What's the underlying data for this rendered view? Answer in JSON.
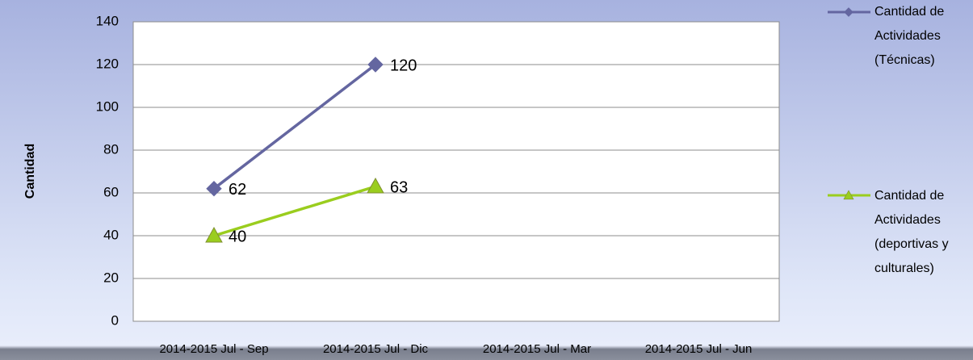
{
  "chart_data": {
    "type": "line",
    "y_label": "Cantidad",
    "categories": [
      "2014-2015 Jul - Sep",
      "2014-2015 Jul - Dic",
      "2014-2015 Jul - Mar",
      "2014-2015 Jul - Jun"
    ],
    "series": [
      {
        "name": "Cantidad de Actividades (Técnicas)",
        "color": "#6466a0",
        "marker": "diamond",
        "values": [
          62,
          120,
          null,
          null
        ]
      },
      {
        "name": "Cantidad de Actividades (deportivas y culturales)",
        "color": "#9acd1e",
        "marker": "triangle",
        "values": [
          40,
          63,
          null,
          null
        ]
      }
    ],
    "ylim": [
      0,
      140
    ],
    "yticks": [
      0,
      20,
      40,
      60,
      80,
      100,
      120,
      140
    ],
    "grid": true,
    "legend": "right"
  }
}
